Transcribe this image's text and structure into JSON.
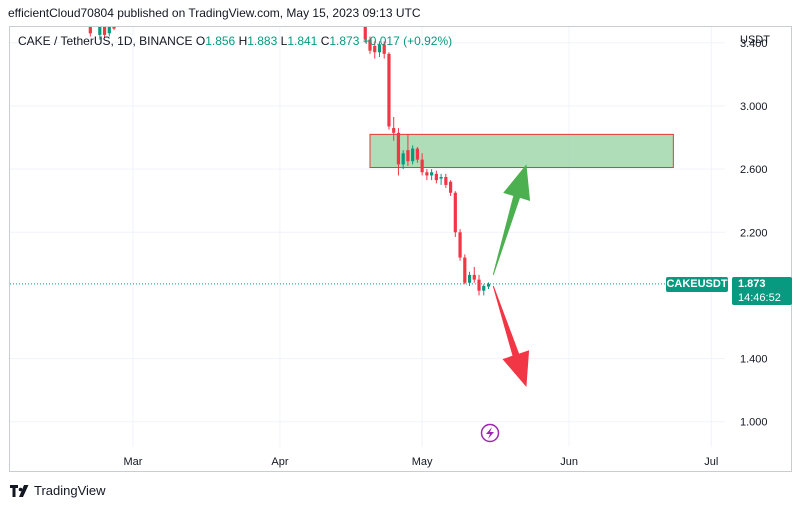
{
  "header": {
    "text": "efficientCloud70804 published on TradingView.com, May 15, 2023 09:13 UTC"
  },
  "legend": {
    "symbol": "CAKE / TetherUS, 1D, BINANCE",
    "o_label": "O",
    "o_value": "1.856",
    "h_label": "H",
    "h_value": "1.883",
    "l_label": "L",
    "l_value": "1.841",
    "c_label": "C",
    "c_value": "1.873",
    "change": "+0.017 (+0.92%)"
  },
  "axis": {
    "unit": "USDT"
  },
  "price_tag": {
    "ticker": "CAKEUSDT",
    "price": "1.873",
    "countdown": "14:46:52"
  },
  "footer": {
    "brand": "TradingView"
  },
  "colors": {
    "up": "#089981",
    "down": "#f23645",
    "zone": "#a5d9b0",
    "zone_border": "#e53935",
    "arrow_up": "#4caf50",
    "arrow_down": "#f23645",
    "accent": "#9c27b0"
  },
  "icons": {
    "lightning": "lightning-icon",
    "logo": "tradingview-logo-icon"
  },
  "chart_data": {
    "type": "candlestick",
    "ylim": [
      0.84,
      3.5
    ],
    "yticks": [
      1.0,
      1.4,
      2.2,
      2.6,
      3.0,
      3.4
    ],
    "ytick_labels": [
      "1.000",
      "1.400",
      "2.200",
      "2.600",
      "3.000",
      "3.400"
    ],
    "xticks": [
      "Mar",
      "Apr",
      "May",
      "Jun",
      "Jul"
    ],
    "last_price": 1.873,
    "zone": {
      "from": "Apr 20",
      "to": "Jun 23",
      "low": 2.61,
      "high": 2.82
    },
    "arrows": [
      {
        "direction": "up",
        "from_date": "May 16",
        "from_price": 1.93,
        "to_date": "May 23",
        "to_price": 2.63
      },
      {
        "direction": "down",
        "from_date": "May 16",
        "from_price": 1.86,
        "to_date": "May 23",
        "to_price": 1.22
      }
    ],
    "candles": [
      {
        "d": "Feb 20",
        "o": 3.5,
        "h": 3.52,
        "l": 3.44,
        "c": 3.46
      },
      {
        "d": "Feb 22",
        "o": 3.45,
        "h": 3.53,
        "l": 3.42,
        "c": 3.52
      },
      {
        "d": "Feb 23",
        "o": 3.5,
        "h": 3.52,
        "l": 3.43,
        "c": 3.45
      },
      {
        "d": "Feb 24",
        "o": 3.46,
        "h": 3.53,
        "l": 3.44,
        "c": 3.52
      },
      {
        "d": "Feb 25",
        "o": 3.5,
        "h": 3.53,
        "l": 3.48,
        "c": 3.49
      },
      {
        "d": "Apr 19",
        "o": 3.52,
        "h": 3.56,
        "l": 3.4,
        "c": 3.42
      },
      {
        "d": "Apr 20",
        "o": 3.42,
        "h": 3.44,
        "l": 3.33,
        "c": 3.35
      },
      {
        "d": "Apr 21",
        "o": 3.38,
        "h": 3.41,
        "l": 3.3,
        "c": 3.34
      },
      {
        "d": "Apr 22",
        "o": 3.34,
        "h": 3.41,
        "l": 3.31,
        "c": 3.39
      },
      {
        "d": "Apr 23",
        "o": 3.39,
        "h": 3.41,
        "l": 3.3,
        "c": 3.33
      },
      {
        "d": "Apr 24",
        "o": 3.33,
        "h": 3.34,
        "l": 2.85,
        "c": 2.87
      },
      {
        "d": "Apr 25",
        "o": 2.86,
        "h": 2.93,
        "l": 2.78,
        "c": 2.83
      },
      {
        "d": "Apr 26",
        "o": 2.83,
        "h": 2.86,
        "l": 2.56,
        "c": 2.63
      },
      {
        "d": "Apr 27",
        "o": 2.63,
        "h": 2.72,
        "l": 2.6,
        "c": 2.7
      },
      {
        "d": "Apr 28",
        "o": 2.72,
        "h": 2.82,
        "l": 2.62,
        "c": 2.65
      },
      {
        "d": "Apr 29",
        "o": 2.65,
        "h": 2.75,
        "l": 2.63,
        "c": 2.73
      },
      {
        "d": "Apr 30",
        "o": 2.73,
        "h": 2.74,
        "l": 2.64,
        "c": 2.66
      },
      {
        "d": "May 1",
        "o": 2.66,
        "h": 2.7,
        "l": 2.56,
        "c": 2.58
      },
      {
        "d": "May 2",
        "o": 2.58,
        "h": 2.6,
        "l": 2.53,
        "c": 2.56
      },
      {
        "d": "May 3",
        "o": 2.56,
        "h": 2.6,
        "l": 2.53,
        "c": 2.58
      },
      {
        "d": "May 4",
        "o": 2.57,
        "h": 2.59,
        "l": 2.51,
        "c": 2.53
      },
      {
        "d": "May 5",
        "o": 2.54,
        "h": 2.57,
        "l": 2.5,
        "c": 2.55
      },
      {
        "d": "May 6",
        "o": 2.55,
        "h": 2.57,
        "l": 2.48,
        "c": 2.5
      },
      {
        "d": "May 7",
        "o": 2.52,
        "h": 2.53,
        "l": 2.43,
        "c": 2.45
      },
      {
        "d": "May 8",
        "o": 2.45,
        "h": 2.46,
        "l": 2.17,
        "c": 2.2
      },
      {
        "d": "May 9",
        "o": 2.2,
        "h": 2.22,
        "l": 2.02,
        "c": 2.04
      },
      {
        "d": "May 10",
        "o": 2.04,
        "h": 2.06,
        "l": 1.87,
        "c": 1.88
      },
      {
        "d": "May 11",
        "o": 1.88,
        "h": 1.95,
        "l": 1.86,
        "c": 1.93
      },
      {
        "d": "May 12",
        "o": 1.93,
        "h": 1.98,
        "l": 1.88,
        "c": 1.9
      },
      {
        "d": "May 13",
        "o": 1.9,
        "h": 1.93,
        "l": 1.8,
        "c": 1.83
      },
      {
        "d": "May 14",
        "o": 1.83,
        "h": 1.87,
        "l": 1.8,
        "c": 1.86
      },
      {
        "d": "May 15",
        "o": 1.856,
        "h": 1.883,
        "l": 1.841,
        "c": 1.873
      }
    ]
  }
}
